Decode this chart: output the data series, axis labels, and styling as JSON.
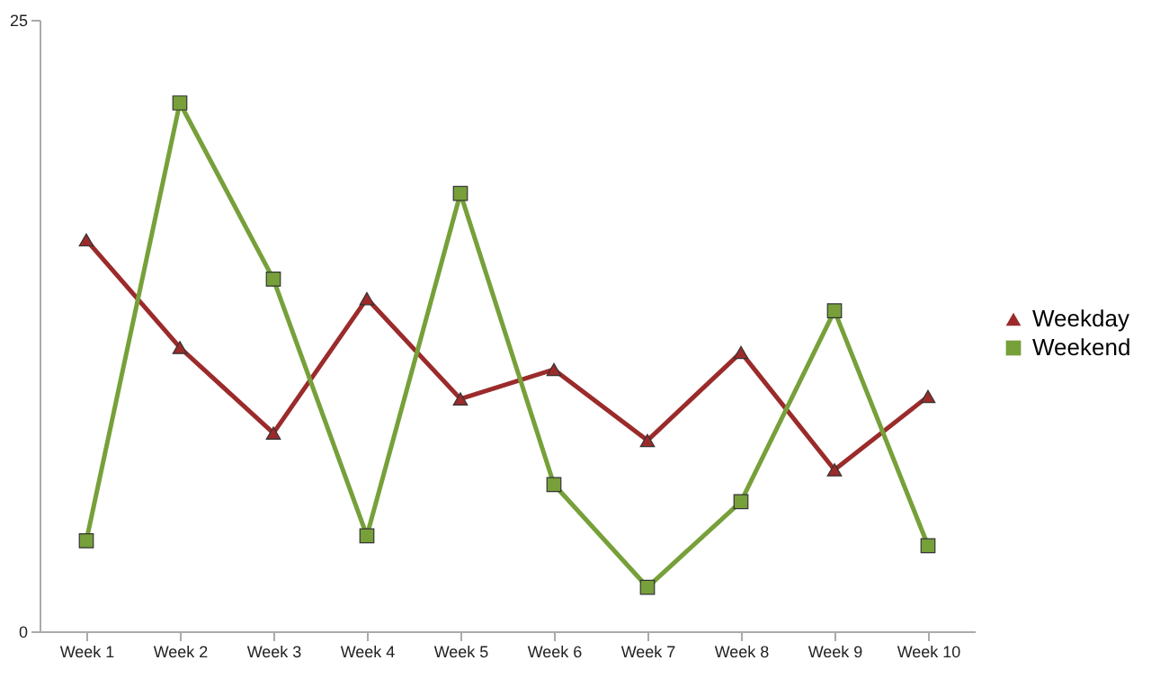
{
  "chart_data": {
    "type": "line",
    "categories": [
      "Week 1",
      "Week 2",
      "Week 3",
      "Week 4",
      "Week 5",
      "Week 6",
      "Week 7",
      "Week 8",
      "Week 9",
      "Week 10"
    ],
    "series": [
      {
        "name": "Weekday",
        "color": "#9b2b2b",
        "marker": "triangle",
        "values": [
          16.0,
          11.6,
          8.1,
          13.6,
          9.5,
          10.7,
          7.8,
          11.4,
          6.6,
          9.6
        ]
      },
      {
        "name": "Weekend",
        "color": "#77a03a",
        "marker": "square",
        "values": [
          3.7,
          21.6,
          14.4,
          3.9,
          17.9,
          6.0,
          1.8,
          5.3,
          13.1,
          3.5
        ]
      }
    ],
    "ylim": [
      0,
      25
    ],
    "yticks": [
      0,
      25
    ],
    "grid": false,
    "legend": "right",
    "line_style": "solid"
  }
}
